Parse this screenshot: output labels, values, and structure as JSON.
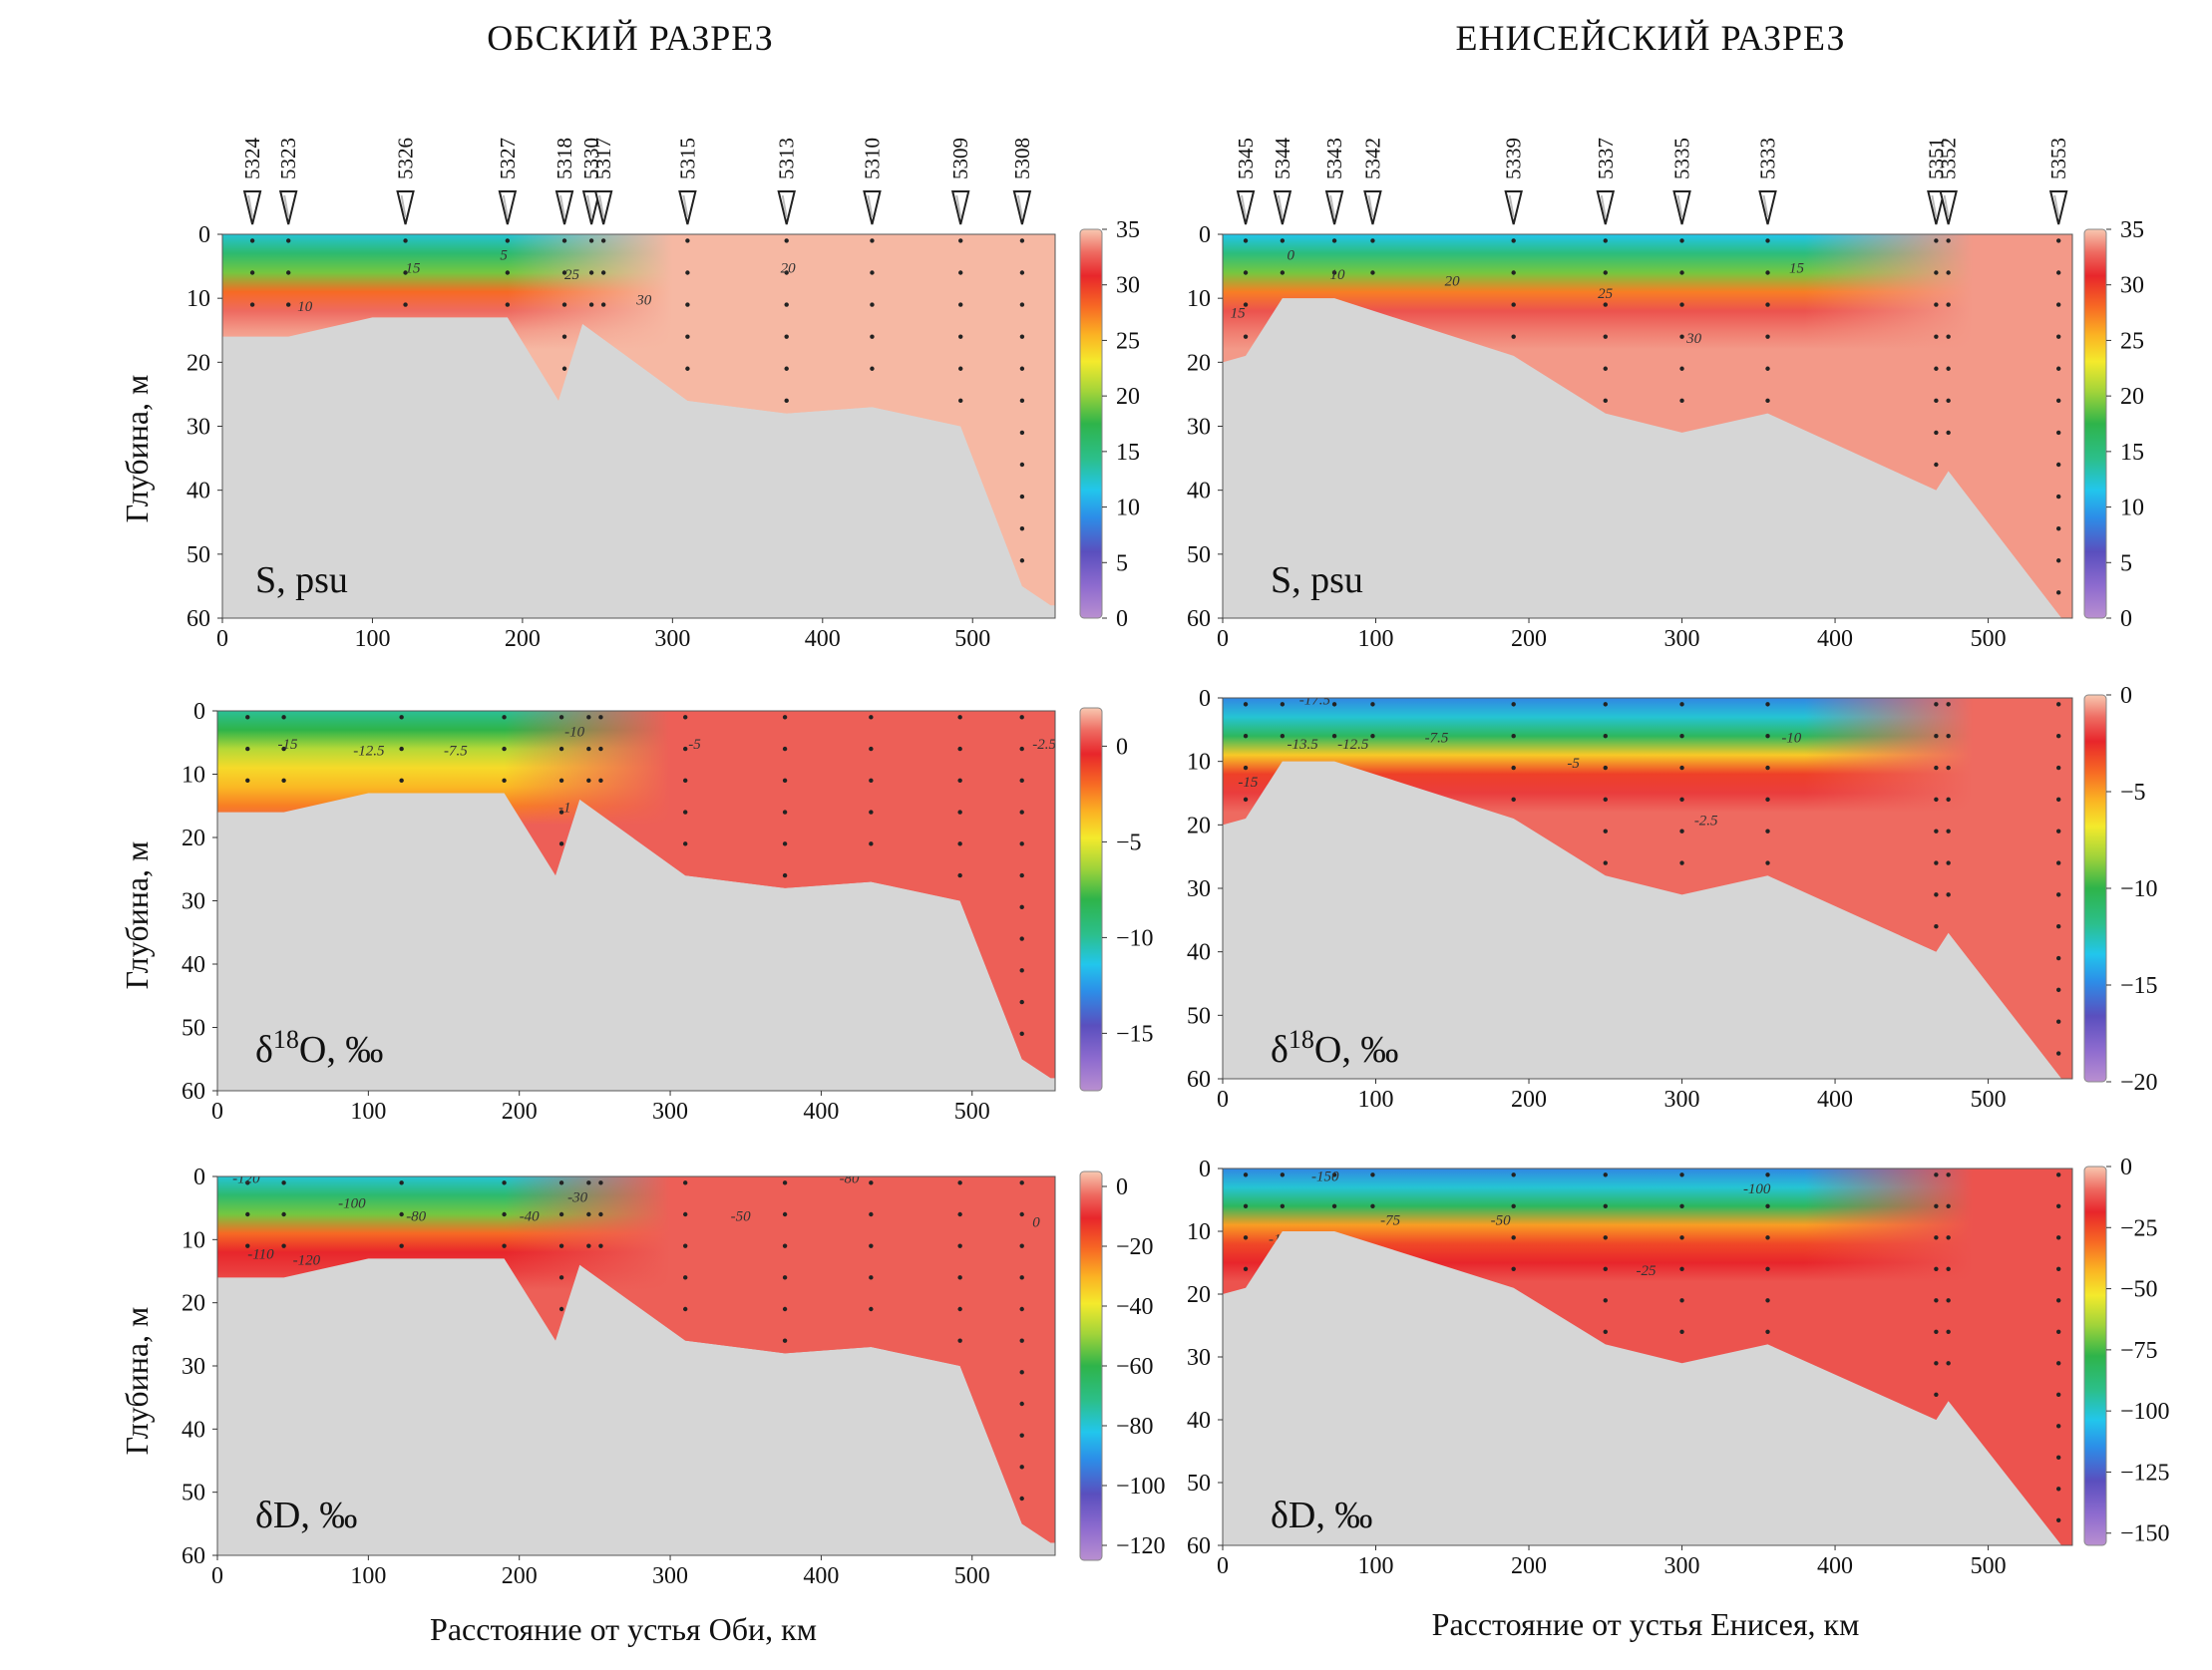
{
  "figure": {
    "sections": [
      {
        "id": "ob",
        "title": "ОБСКИЙ РАЗРЕЗ",
        "xlabel": "Расстояние от устья Оби, км",
        "ylabel": "Глубина, м",
        "stations": [
          {
            "name": "5324",
            "km": 20
          },
          {
            "name": "5323",
            "km": 44
          },
          {
            "name": "5326",
            "km": 122
          },
          {
            "name": "5327",
            "km": 190
          },
          {
            "name": "5318",
            "km": 228
          },
          {
            "name": "5330",
            "km": 246
          },
          {
            "name": "5317",
            "km": 254
          },
          {
            "name": "5315",
            "km": 310
          },
          {
            "name": "5313",
            "km": 376
          },
          {
            "name": "5310",
            "km": 433
          },
          {
            "name": "5309",
            "km": 492
          },
          {
            "name": "5308",
            "km": 533
          }
        ]
      },
      {
        "id": "yenisei",
        "title": "ЕНИСЕЙСКИЙ РАЗРЕЗ",
        "xlabel": "Расстояние от устья Енисея, км",
        "ylabel": "",
        "stations": [
          {
            "name": "5345",
            "km": 15
          },
          {
            "name": "5344",
            "km": 39
          },
          {
            "name": "5343",
            "km": 73
          },
          {
            "name": "5342",
            "km": 98
          },
          {
            "name": "5339",
            "km": 190
          },
          {
            "name": "5337",
            "km": 250
          },
          {
            "name": "5335",
            "km": 300
          },
          {
            "name": "5333",
            "km": 356
          },
          {
            "name": "5351",
            "km": 466
          },
          {
            "name": "5352",
            "km": 474
          },
          {
            "name": "5353",
            "km": 546
          }
        ]
      }
    ]
  },
  "chart_data": [
    {
      "type": "heatmap",
      "section": "ob",
      "panel_label": "S, psu",
      "variable": "S",
      "units": "psu",
      "x_ticks": [
        0,
        100,
        200,
        300,
        400,
        500
      ],
      "y_ticks": [
        0,
        10,
        20,
        30,
        40,
        50,
        60
      ],
      "colorbar": {
        "min": 0,
        "max": 35,
        "ticks": [
          0,
          5,
          10,
          15,
          20,
          25,
          30,
          35
        ]
      },
      "bottom_depth": [
        [
          0,
          16
        ],
        [
          44,
          16
        ],
        [
          100,
          13
        ],
        [
          190,
          13
        ],
        [
          224,
          26
        ],
        [
          240,
          14
        ],
        [
          310,
          26
        ],
        [
          376,
          28
        ],
        [
          433,
          27
        ],
        [
          492,
          30
        ],
        [
          533,
          55
        ],
        [
          552,
          58
        ]
      ],
      "isolines": [
        {
          "value": 5,
          "x": 185,
          "y": 4
        },
        {
          "value": 10,
          "x": 50,
          "y": 12
        },
        {
          "value": 15,
          "x": 122,
          "y": 6
        },
        {
          "value": 20,
          "x": 372,
          "y": 6
        },
        {
          "value": 25,
          "x": 228,
          "y": 7
        },
        {
          "value": 30,
          "x": 276,
          "y": 11
        }
      ],
      "layer_profile": [
        0.35,
        0.45,
        0.55,
        0.8,
        0.94,
        0.97,
        0.99
      ],
      "fresh_extent_km": 250
    },
    {
      "type": "heatmap",
      "section": "ob",
      "panel_label": "δ18O, ‰",
      "variable": "δ18O",
      "units": "‰",
      "x_ticks": [
        0,
        100,
        200,
        300,
        400,
        500
      ],
      "y_ticks": [
        0,
        10,
        20,
        30,
        40,
        50,
        60
      ],
      "colorbar": {
        "min": -18,
        "max": 2,
        "ticks": [
          -15,
          -10,
          -5,
          0
        ]
      },
      "bottom_depth": [
        [
          0,
          16
        ],
        [
          44,
          16
        ],
        [
          100,
          13
        ],
        [
          190,
          13
        ],
        [
          224,
          26
        ],
        [
          240,
          14
        ],
        [
          310,
          26
        ],
        [
          376,
          28
        ],
        [
          433,
          27
        ],
        [
          492,
          30
        ],
        [
          533,
          55
        ],
        [
          552,
          58
        ]
      ],
      "isolines": [
        {
          "value": -15,
          "x": 40,
          "y": 6
        },
        {
          "value": -12.5,
          "x": 90,
          "y": 7
        },
        {
          "value": -7.5,
          "x": 150,
          "y": 7
        },
        {
          "value": -10,
          "x": 230,
          "y": 4
        },
        {
          "value": -5,
          "x": 312,
          "y": 6
        },
        {
          "value": -1,
          "x": 226,
          "y": 16
        },
        {
          "value": -2.5,
          "x": 540,
          "y": 6
        }
      ],
      "layer_profile": [
        0.4,
        0.5,
        0.6,
        0.68,
        0.72,
        0.78,
        0.93
      ],
      "fresh_extent_km": 250
    },
    {
      "type": "heatmap",
      "section": "ob",
      "panel_label": "δD, ‰",
      "variable": "δD",
      "units": "‰",
      "x_ticks": [
        0,
        100,
        200,
        300,
        400,
        500
      ],
      "y_ticks": [
        0,
        10,
        20,
        30,
        40,
        50,
        60
      ],
      "colorbar": {
        "min": -125,
        "max": 5,
        "ticks": [
          -120,
          -100,
          -80,
          -60,
          -40,
          -20,
          0
        ]
      },
      "bottom_depth": [
        [
          0,
          16
        ],
        [
          44,
          16
        ],
        [
          100,
          13
        ],
        [
          190,
          13
        ],
        [
          224,
          26
        ],
        [
          240,
          14
        ],
        [
          310,
          26
        ],
        [
          376,
          28
        ],
        [
          433,
          27
        ],
        [
          492,
          30
        ],
        [
          533,
          55
        ],
        [
          552,
          58
        ]
      ],
      "isolines": [
        {
          "value": -120,
          "x": 10,
          "y": 1
        },
        {
          "value": -100,
          "x": 80,
          "y": 5
        },
        {
          "value": -80,
          "x": 125,
          "y": 7
        },
        {
          "value": -40,
          "x": 200,
          "y": 7
        },
        {
          "value": -30,
          "x": 232,
          "y": 4
        },
        {
          "value": -50,
          "x": 340,
          "y": 7
        },
        {
          "value": -80,
          "x": 412,
          "y": 1
        },
        {
          "value": -110,
          "x": 20,
          "y": 13
        },
        {
          "value": -120,
          "x": 50,
          "y": 14
        },
        {
          "value": 0,
          "x": 540,
          "y": 8
        }
      ],
      "layer_profile": [
        0.35,
        0.45,
        0.55,
        0.8,
        0.88,
        0.9,
        0.93
      ],
      "fresh_extent_km": 250
    },
    {
      "type": "heatmap",
      "section": "yenisei",
      "panel_label": "S, psu",
      "variable": "S",
      "units": "psu",
      "x_ticks": [
        0,
        100,
        200,
        300,
        400,
        500
      ],
      "y_ticks": [
        0,
        10,
        20,
        30,
        40,
        50,
        60
      ],
      "colorbar": {
        "min": 0,
        "max": 35,
        "ticks": [
          0,
          5,
          10,
          15,
          20,
          25,
          30,
          35
        ]
      },
      "bottom_depth": [
        [
          0,
          20
        ],
        [
          15,
          19
        ],
        [
          39,
          10
        ],
        [
          73,
          10
        ],
        [
          190,
          19
        ],
        [
          250,
          28
        ],
        [
          300,
          31
        ],
        [
          356,
          28
        ],
        [
          466,
          40
        ],
        [
          474,
          37
        ],
        [
          548,
          60
        ],
        [
          555,
          60
        ]
      ],
      "isolines": [
        {
          "value": 0,
          "x": 42,
          "y": 4
        },
        {
          "value": 10,
          "x": 70,
          "y": 7
        },
        {
          "value": 15,
          "x": 5,
          "y": 13
        },
        {
          "value": 20,
          "x": 145,
          "y": 8
        },
        {
          "value": 25,
          "x": 245,
          "y": 10
        },
        {
          "value": 15,
          "x": 370,
          "y": 6
        },
        {
          "value": 30,
          "x": 303,
          "y": 17
        }
      ],
      "layer_profile": [
        0.33,
        0.43,
        0.55,
        0.78,
        0.92,
        0.95,
        0.97
      ],
      "fresh_extent_km": 440
    },
    {
      "type": "heatmap",
      "section": "yenisei",
      "panel_label": "δ18O, ‰",
      "variable": "δ18O",
      "units": "‰",
      "x_ticks": [
        0,
        100,
        200,
        300,
        400,
        500
      ],
      "y_ticks": [
        0,
        10,
        20,
        30,
        40,
        50,
        60
      ],
      "colorbar": {
        "min": -20,
        "max": 0,
        "ticks": [
          -20,
          -15,
          -10,
          -5,
          0
        ]
      },
      "bottom_depth": [
        [
          0,
          20
        ],
        [
          15,
          19
        ],
        [
          39,
          10
        ],
        [
          73,
          10
        ],
        [
          190,
          19
        ],
        [
          250,
          28
        ],
        [
          300,
          31
        ],
        [
          356,
          28
        ],
        [
          466,
          40
        ],
        [
          474,
          37
        ],
        [
          548,
          60
        ],
        [
          555,
          60
        ]
      ],
      "isolines": [
        {
          "value": -17.5,
          "x": 50,
          "y": 1
        },
        {
          "value": -15,
          "x": 10,
          "y": 14
        },
        {
          "value": -13.5,
          "x": 42,
          "y": 8
        },
        {
          "value": -12.5,
          "x": 75,
          "y": 8
        },
        {
          "value": -7.5,
          "x": 132,
          "y": 7
        },
        {
          "value": -5,
          "x": 225,
          "y": 11
        },
        {
          "value": -10,
          "x": 365,
          "y": 7
        },
        {
          "value": -2.5,
          "x": 308,
          "y": 20
        }
      ],
      "layer_profile": [
        0.25,
        0.35,
        0.47,
        0.7,
        0.85,
        0.9,
        0.94
      ],
      "fresh_extent_km": 440
    },
    {
      "type": "heatmap",
      "section": "yenisei",
      "panel_label": "δD, ‰",
      "variable": "δD",
      "units": "‰",
      "x_ticks": [
        0,
        100,
        200,
        300,
        400,
        500
      ],
      "y_ticks": [
        0,
        10,
        20,
        30,
        40,
        50,
        60
      ],
      "colorbar": {
        "min": -155,
        "max": 0,
        "ticks": [
          -150,
          -125,
          -100,
          -75,
          -50,
          -25,
          0
        ]
      },
      "bottom_depth": [
        [
          0,
          20
        ],
        [
          15,
          19
        ],
        [
          39,
          10
        ],
        [
          73,
          10
        ],
        [
          190,
          19
        ],
        [
          250,
          28
        ],
        [
          300,
          31
        ],
        [
          356,
          28
        ],
        [
          466,
          40
        ],
        [
          474,
          37
        ],
        [
          548,
          60
        ],
        [
          555,
          60
        ]
      ],
      "isolines": [
        {
          "value": -150,
          "x": 58,
          "y": 2
        },
        {
          "value": -125,
          "x": 30,
          "y": 12
        },
        {
          "value": -75,
          "x": 103,
          "y": 9
        },
        {
          "value": -50,
          "x": 175,
          "y": 9
        },
        {
          "value": -100,
          "x": 340,
          "y": 4
        },
        {
          "value": -25,
          "x": 270,
          "y": 17
        }
      ],
      "layer_profile": [
        0.25,
        0.35,
        0.47,
        0.75,
        0.84,
        0.88,
        0.92
      ],
      "fresh_extent_km": 440
    }
  ]
}
